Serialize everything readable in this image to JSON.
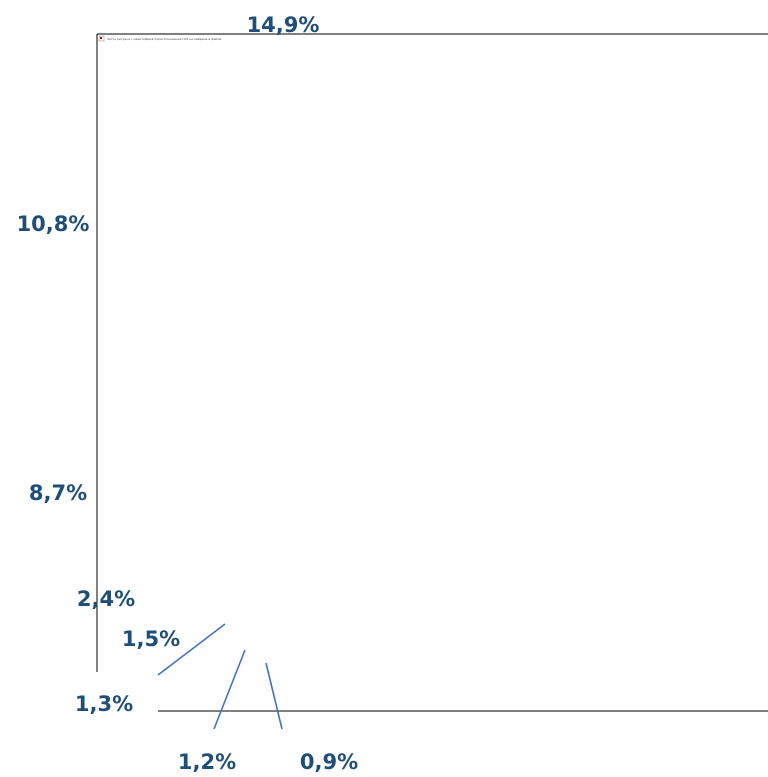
{
  "chart_data": {
    "type": "pie",
    "title": "",
    "values": [
      14.9,
      10.8,
      8.7,
      2.4,
      1.5,
      1.3,
      1.2,
      0.9
    ],
    "labels": [
      "14,9%",
      "10,8%",
      "8,7%",
      "2,4%",
      "1,5%",
      "1,3%",
      "1,2%",
      "0,9%"
    ],
    "label_color": "#1f4e79",
    "leader_line_color": "#4472c4"
  },
  "broken_image": {
    "alt_text": "Часть рисунка с идентификатором отношения rId3 не найдена в файле."
  }
}
